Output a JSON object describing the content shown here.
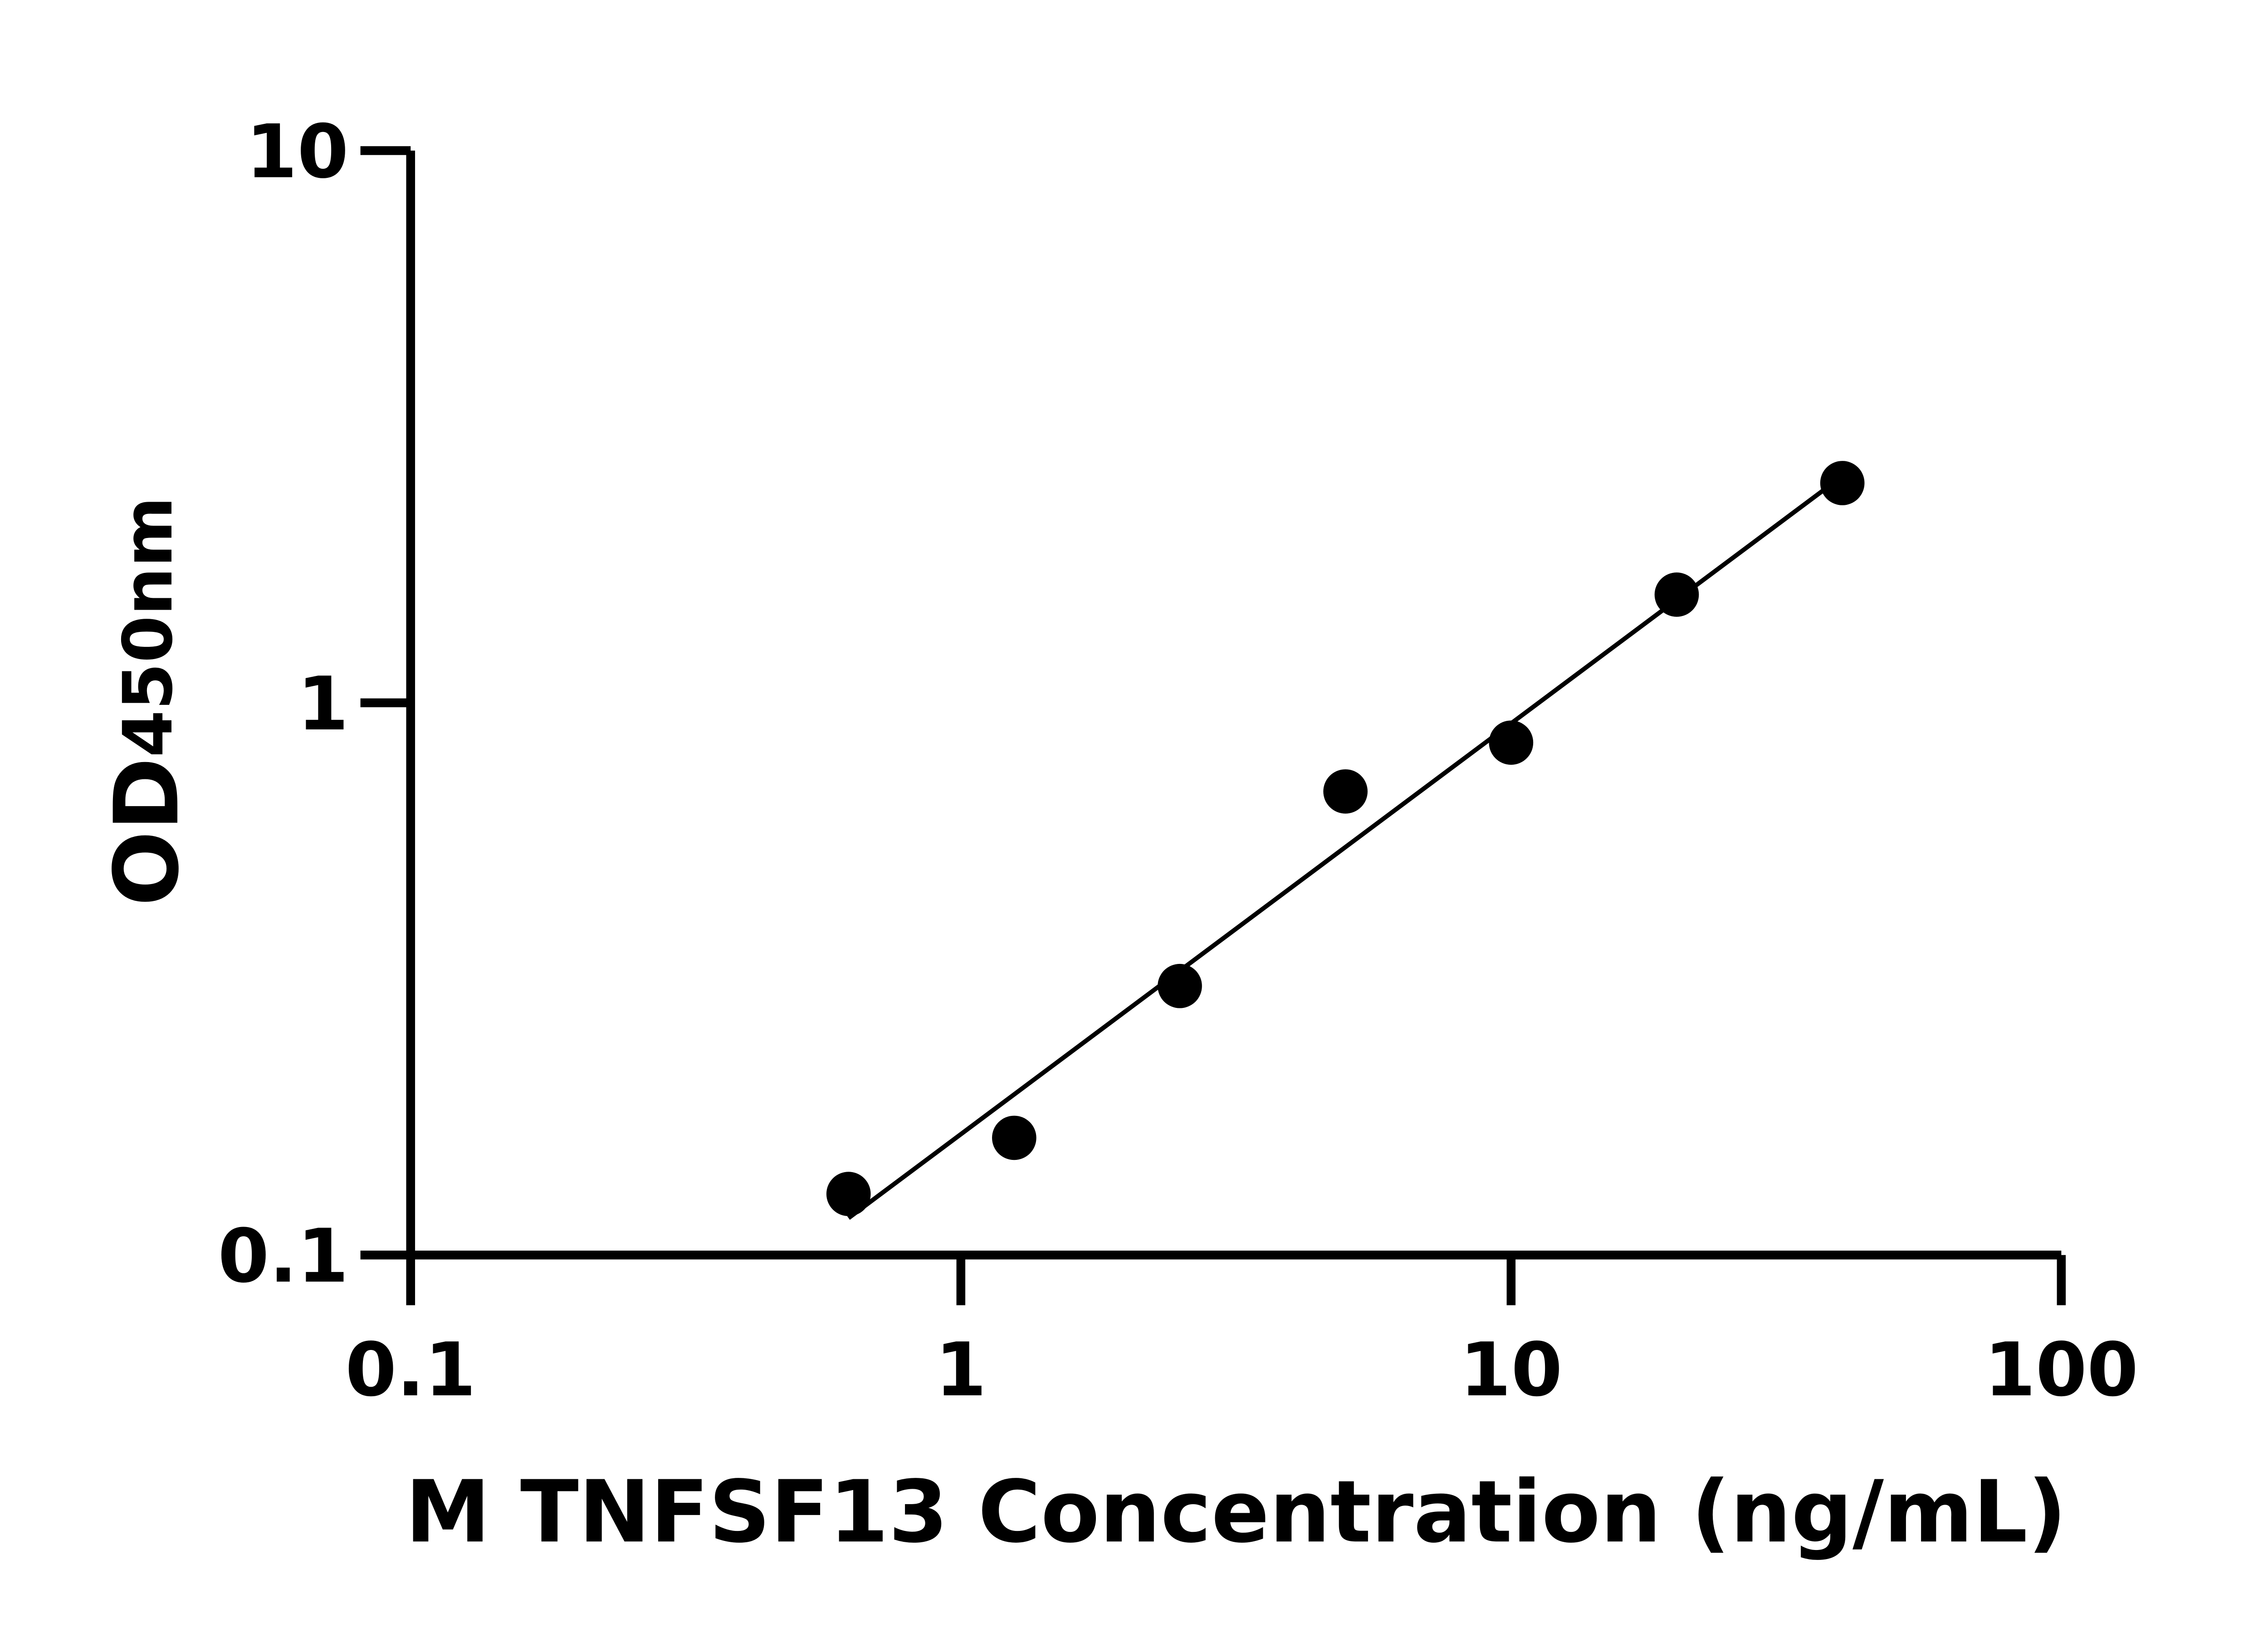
{
  "chart_data": {
    "type": "scatter",
    "title": "",
    "xlabel": "M TNFSF13 Concentration (ng/mL)",
    "ylabel_main": "OD",
    "ylabel_sub": "450nm",
    "x_scale": "log",
    "y_scale": "log",
    "xlim": [
      0.1,
      100
    ],
    "ylim": [
      0.1,
      10
    ],
    "x_ticks": [
      {
        "value": 0.1,
        "label": "0.1"
      },
      {
        "value": 1,
        "label": "1"
      },
      {
        "value": 10,
        "label": "10"
      },
      {
        "value": 100,
        "label": "100"
      }
    ],
    "y_ticks": [
      {
        "value": 0.1,
        "label": "0.1"
      },
      {
        "value": 1,
        "label": "1"
      },
      {
        "value": 10,
        "label": "10"
      }
    ],
    "grid": false,
    "fit_line": "linear fit in log-log",
    "series": [
      {
        "x": [
          0.625,
          1.25,
          2.5,
          5,
          10,
          20,
          40
        ],
        "y": [
          0.129,
          0.163,
          0.307,
          0.691,
          0.847,
          1.57,
          2.5
        ],
        "color": "#000000"
      }
    ]
  }
}
